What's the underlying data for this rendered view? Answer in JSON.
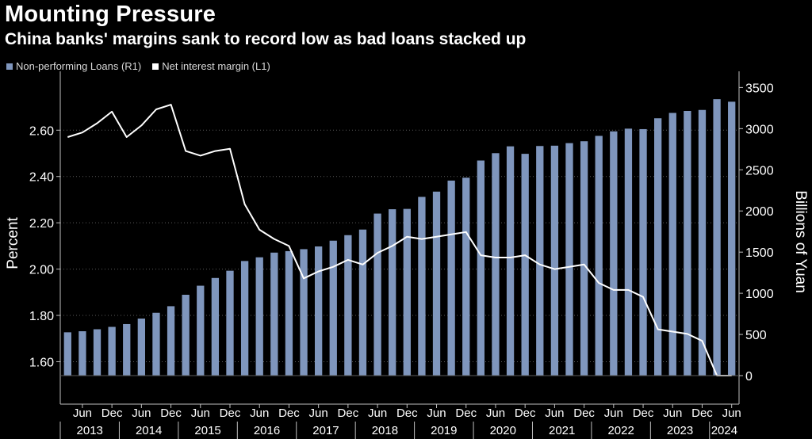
{
  "header": {
    "title": "Mounting Pressure",
    "subtitle": "China banks' margins sank to record low as bad loans stacked up"
  },
  "chart_data": {
    "type": "bar+line",
    "title": "Mounting Pressure",
    "subtitle": "China banks' margins sank to record low as bad loans stacked up",
    "legend": [
      {
        "name": "Non-performing Loans (R1)",
        "color": "#7f96bd"
      },
      {
        "name": "Net interest margin (L1)",
        "color": "#ffffff"
      }
    ],
    "legend_position": "top-left",
    "ylabel_left": "Percent",
    "ylabel_right": "Billions of Yuan",
    "ylim_left": [
      1.54,
      2.82
    ],
    "ylim_right": [
      0,
      3600
    ],
    "yticks_left": [
      "1.60",
      "1.80",
      "2.00",
      "2.20",
      "2.40",
      "2.60"
    ],
    "yticks_left_values": [
      1.6,
      1.8,
      2.0,
      2.2,
      2.4,
      2.6
    ],
    "yticks_right": [
      "0",
      "500",
      "1000",
      "1500",
      "2000",
      "2500",
      "3000",
      "3500"
    ],
    "yticks_right_values": [
      0,
      500,
      1000,
      1500,
      2000,
      2500,
      3000,
      3500
    ],
    "x_month_labels": [
      "Jun",
      "Dec",
      "Jun",
      "Dec",
      "Jun",
      "Dec",
      "Jun",
      "Dec",
      "Jun",
      "Dec",
      "Jun",
      "Dec",
      "Jun",
      "Dec",
      "Jun",
      "Dec",
      "Jun",
      "Dec",
      "Jun",
      "Dec",
      "Jun",
      "Dec",
      "Jun"
    ],
    "x_year_labels": [
      "2013",
      "2014",
      "2015",
      "2016",
      "2017",
      "2018",
      "2019",
      "2020",
      "2021",
      "2022",
      "2023",
      "2024"
    ],
    "categories": [
      "Q1 2013",
      "Q2 2013",
      "Q3 2013",
      "Q4 2013",
      "Q1 2014",
      "Q2 2014",
      "Q3 2014",
      "Q4 2014",
      "Q1 2015",
      "Q2 2015",
      "Q3 2015",
      "Q4 2015",
      "Q1 2016",
      "Q2 2016",
      "Q3 2016",
      "Q4 2016",
      "Q1 2017",
      "Q2 2017",
      "Q3 2017",
      "Q4 2017",
      "Q1 2018",
      "Q2 2018",
      "Q3 2018",
      "Q4 2018",
      "Q1 2019",
      "Q2 2019",
      "Q3 2019",
      "Q4 2019",
      "Q1 2020",
      "Q2 2020",
      "Q3 2020",
      "Q4 2020",
      "Q1 2021",
      "Q2 2021",
      "Q3 2021",
      "Q4 2021",
      "Q1 2022",
      "Q2 2022",
      "Q3 2022",
      "Q4 2022",
      "Q1 2023",
      "Q2 2023",
      "Q3 2023",
      "Q4 2023",
      "Q1 2024",
      "Q2 2024"
    ],
    "series": [
      {
        "name": "Non-performing Loans (R1)",
        "axis": "right",
        "type": "bar",
        "values": [
          526,
          539,
          563,
          592,
          626,
          693,
          763,
          843,
          982,
          1092,
          1186,
          1274,
          1392,
          1437,
          1494,
          1512,
          1536,
          1569,
          1639,
          1706,
          1774,
          1968,
          2021,
          2025,
          2171,
          2235,
          2369,
          2404,
          2613,
          2702,
          2785,
          2694,
          2789,
          2793,
          2824,
          2847,
          2912,
          2967,
          3000,
          2994,
          3126,
          3191,
          3215,
          3227,
          3358,
          3327
        ]
      },
      {
        "name": "Net interest margin (L1)",
        "axis": "left",
        "type": "line",
        "values": [
          2.57,
          2.59,
          2.63,
          2.68,
          2.57,
          2.62,
          2.69,
          2.71,
          2.51,
          2.49,
          2.51,
          2.52,
          2.28,
          2.17,
          2.13,
          2.1,
          1.96,
          1.99,
          2.01,
          2.04,
          2.02,
          2.07,
          2.1,
          2.14,
          2.13,
          2.14,
          2.15,
          2.16,
          2.06,
          2.05,
          2.05,
          2.06,
          2.02,
          2.0,
          2.01,
          2.02,
          1.94,
          1.91,
          1.91,
          1.88,
          1.74,
          1.73,
          1.72,
          1.69,
          1.54,
          1.54
        ]
      }
    ]
  }
}
